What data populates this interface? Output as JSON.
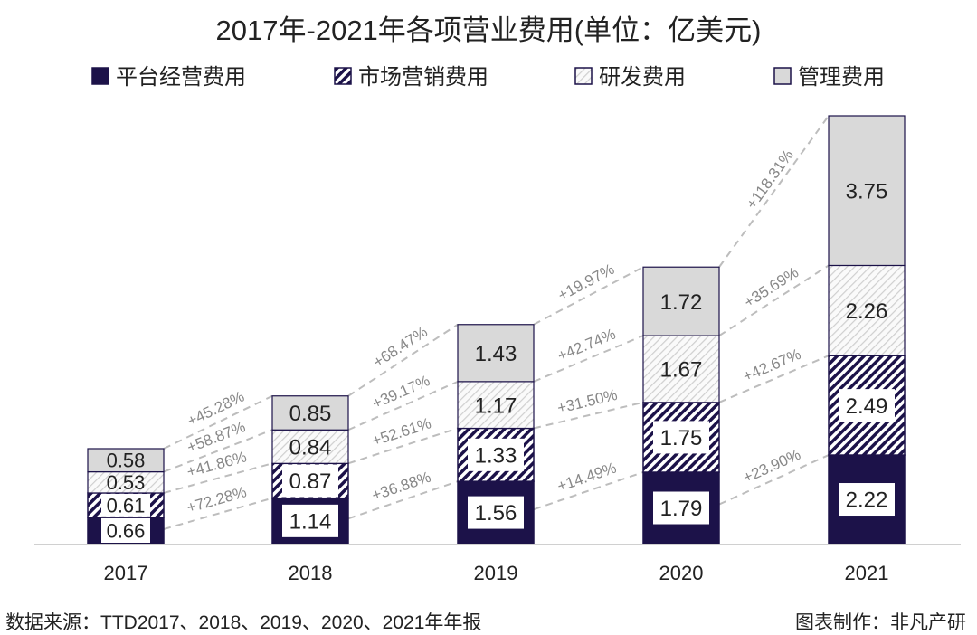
{
  "chart_data": {
    "type": "bar",
    "stacked": true,
    "title": "2017年-2021年各项营业费用(单位：亿美元)",
    "categories": [
      "2017",
      "2018",
      "2019",
      "2020",
      "2021"
    ],
    "series": [
      {
        "name": "平台经营费用",
        "values": [
          0.66,
          1.14,
          1.56,
          1.79,
          2.22
        ],
        "color": "#1c1249",
        "pattern": "solid"
      },
      {
        "name": "市场营销费用",
        "values": [
          0.61,
          0.87,
          1.33,
          1.75,
          2.49
        ],
        "color": "#1c1249",
        "pattern": "dense-hatch"
      },
      {
        "name": "研发费用",
        "values": [
          0.53,
          0.84,
          1.17,
          1.67,
          2.26
        ],
        "color": "#c8c8c8",
        "pattern": "light-hatch"
      },
      {
        "name": "管理费用",
        "values": [
          0.58,
          0.85,
          1.43,
          1.72,
          3.75
        ],
        "color": "#d9d9d9",
        "pattern": "solid"
      }
    ],
    "growth_labels": [
      [
        "+72.28%",
        "+36.88%",
        "+14.49%",
        "+23.90%"
      ],
      [
        "+41.86%",
        "+52.61%",
        "+31.50%",
        "+42.67%"
      ],
      [
        "+58.87%",
        "+39.17%",
        "+42.74%",
        "+35.69%"
      ],
      [
        "+45.28%",
        "+68.47%",
        "+19.97%",
        "+118.31%"
      ]
    ],
    "legend_position": "top",
    "grid": false,
    "ylim": [
      0,
      10.72
    ]
  },
  "footer": {
    "source": "数据来源：TTD2017、2018、2019、2020、2021年年报",
    "credit": "图表制作：非凡产研"
  }
}
